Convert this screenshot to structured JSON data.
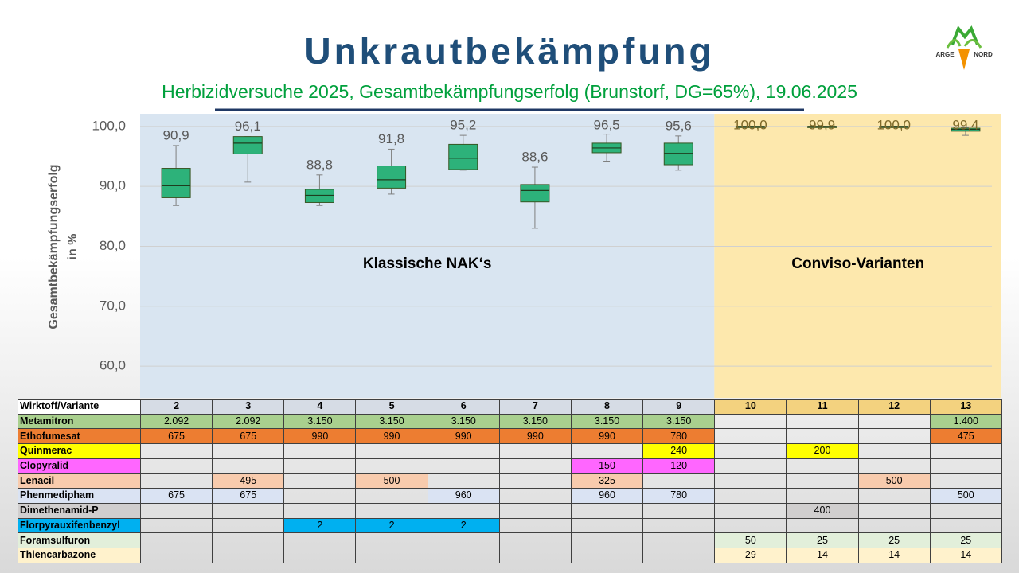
{
  "header": {
    "title": "Unkrautbekämpfung",
    "subtitle": "Herbizidversuche 2025, Gesamtbekämpfungserfolg (Brunstorf, DG=65%), 19.06.2025",
    "logo": [
      "ARGE",
      "NORD"
    ]
  },
  "chart_data": {
    "type": "box",
    "y_label": [
      "Gesamtbekämpfungserfolg",
      "in %"
    ],
    "categories": [
      "2",
      "3",
      "4",
      "5",
      "6",
      "7",
      "8",
      "9",
      "10",
      "11",
      "12",
      "13"
    ],
    "low": [
      86.8,
      90.7,
      86.8,
      88.7,
      92.7,
      83.0,
      94.2,
      92.7,
      100,
      99.9,
      100,
      98.5
    ],
    "q1": [
      88.1,
      95.4,
      87.3,
      89.7,
      92.8,
      87.4,
      95.6,
      93.6,
      100,
      100,
      100,
      99.2
    ],
    "median": [
      90.1,
      97.2,
      88.5,
      91.1,
      94.7,
      89.3,
      96.4,
      95.5,
      100,
      100,
      100,
      99.5
    ],
    "q3": [
      93.0,
      98.3,
      89.5,
      93.4,
      97.0,
      90.3,
      97.2,
      97.2,
      100,
      100,
      100,
      99.7
    ],
    "high": [
      96.8,
      98.3,
      91.9,
      96.2,
      98.5,
      93.2,
      98.7,
      98.4,
      100,
      100,
      100,
      99.8
    ],
    "means": [
      90.9,
      96.1,
      88.8,
      91.8,
      95.2,
      88.6,
      96.5,
      95.6,
      100.0,
      99.9,
      100.0,
      99.4
    ],
    "value_labels": [
      "90,9",
      "96,1",
      "88,8",
      "91,8",
      "95,2",
      "88,6",
      "96,5",
      "95,6",
      "100,0",
      "99,9",
      "100,0",
      "99,4"
    ],
    "box_color": "#2db27a",
    "ylim": [
      54.7,
      102.1
    ],
    "yticks": [
      {
        "value": 60,
        "label": "60,0"
      },
      {
        "value": 70,
        "label": "70,0"
      },
      {
        "value": 80,
        "label": "80,0"
      },
      {
        "value": 90,
        "label": "90,0"
      },
      {
        "value": 100,
        "label": "100,0"
      }
    ],
    "grid": true,
    "regions": [
      {
        "label": "Klassische NAK‘s",
        "span": 8,
        "color": "#d9e5f1",
        "header_color": "#d6dce5"
      },
      {
        "label": "Conviso-Varianten",
        "span": 4,
        "color": "#fde8ad",
        "header_color": "#f3d27f"
      }
    ]
  },
  "table": {
    "corner": "Wirktoff/Variante",
    "rows": [
      {
        "name": "Metamitron",
        "color": "#a9d08e",
        "cells": [
          {
            "value": 2092,
            "label": "2.092"
          },
          {
            "value": 2092,
            "label": "2.092"
          },
          {
            "value": 3150,
            "label": "3.150"
          },
          {
            "value": 3150,
            "label": "3.150"
          },
          {
            "value": 3150,
            "label": "3.150"
          },
          {
            "value": 3150,
            "label": "3.150"
          },
          {
            "value": 3150,
            "label": "3.150"
          },
          {
            "value": 3150,
            "label": "3.150"
          },
          null,
          null,
          null,
          {
            "value": 1400,
            "label": "1.400"
          }
        ]
      },
      {
        "name": "Ethofumesat",
        "color": "#ed7d31",
        "cells": [
          675,
          675,
          990,
          990,
          990,
          990,
          990,
          780,
          null,
          null,
          null,
          475
        ]
      },
      {
        "name": "Quinmerac",
        "color": "#ffff00",
        "cells": [
          null,
          null,
          null,
          null,
          null,
          null,
          null,
          240,
          null,
          200,
          null,
          null
        ]
      },
      {
        "name": "Clopyralid",
        "color": "#ff66ff",
        "cells": [
          null,
          null,
          null,
          null,
          null,
          null,
          150,
          120,
          null,
          null,
          null,
          null
        ]
      },
      {
        "name": "Lenacil",
        "color": "#f8cbad",
        "cells": [
          null,
          495,
          null,
          500,
          null,
          null,
          325,
          null,
          null,
          null,
          500,
          null
        ]
      },
      {
        "name": "Phenmedipham",
        "color": "#dae3f3",
        "cells": [
          675,
          675,
          null,
          null,
          960,
          null,
          960,
          780,
          null,
          null,
          null,
          500
        ]
      },
      {
        "name": "Dimethenamid-P",
        "color": "#d0cece",
        "cells": [
          null,
          null,
          null,
          null,
          null,
          null,
          null,
          null,
          null,
          400,
          null,
          null
        ]
      },
      {
        "name": "Florpyrauxifenbenzyl",
        "color": "#00b0f0",
        "cells": [
          null,
          null,
          2,
          2,
          2,
          null,
          null,
          null,
          null,
          null,
          null,
          null
        ]
      },
      {
        "name": "Foramsulfuron",
        "color": "#e2efda",
        "cells": [
          null,
          null,
          null,
          null,
          null,
          null,
          null,
          null,
          50,
          25,
          25,
          25
        ]
      },
      {
        "name": "Thiencarbazone",
        "color": "#fff2cc",
        "cells": [
          null,
          null,
          null,
          null,
          null,
          null,
          null,
          null,
          29,
          14,
          14,
          14
        ]
      }
    ]
  }
}
